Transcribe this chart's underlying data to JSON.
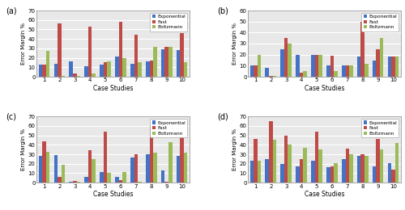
{
  "subplots": {
    "a": {
      "label": "(a)",
      "exponential": [
        13,
        14,
        16,
        11,
        13,
        21,
        14,
        16,
        29,
        28
      ],
      "fast": [
        13,
        56,
        3,
        53,
        15,
        58,
        44,
        17,
        32,
        46
      ],
      "boltzmann": [
        27,
        1,
        1,
        3,
        16,
        20,
        15,
        32,
        32,
        15
      ],
      "ylim": [
        0,
        70
      ],
      "yticks": [
        0,
        10,
        20,
        30,
        40,
        50,
        60,
        70
      ]
    },
    "b": {
      "label": "(b)",
      "exponential": [
        10,
        8,
        25,
        20,
        20,
        10,
        10,
        18,
        15,
        18
      ],
      "fast": [
        10,
        1,
        35,
        4,
        20,
        19,
        10,
        50,
        25,
        18
      ],
      "boltzmann": [
        20,
        1,
        30,
        5,
        20,
        5,
        10,
        12,
        35,
        18
      ],
      "ylim": [
        0,
        60
      ],
      "yticks": [
        0,
        10,
        20,
        30,
        40,
        50,
        60
      ]
    },
    "c": {
      "label": "(c)",
      "exponential": [
        28,
        29,
        1,
        6,
        11,
        6,
        27,
        30,
        13,
        28
      ],
      "fast": [
        44,
        6,
        2,
        34,
        54,
        3,
        30,
        60,
        1,
        60
      ],
      "boltzmann": [
        33,
        19,
        1,
        25,
        10,
        11,
        1,
        32,
        43,
        32
      ],
      "ylim": [
        0,
        70
      ],
      "yticks": [
        0,
        10,
        20,
        30,
        40,
        50,
        60,
        70
      ]
    },
    "d": {
      "label": "(d)",
      "exponential": [
        23,
        25,
        20,
        17,
        23,
        16,
        25,
        28,
        17,
        21
      ],
      "fast": [
        46,
        65,
        50,
        25,
        54,
        17,
        36,
        30,
        46,
        14
      ],
      "boltzmann": [
        23,
        45,
        40,
        37,
        35,
        21,
        30,
        28,
        35,
        42
      ],
      "ylim": [
        0,
        70
      ],
      "yticks": [
        0,
        10,
        20,
        30,
        40,
        50,
        60,
        70
      ]
    }
  },
  "colors": {
    "exponential": "#4472C4",
    "fast": "#BE4B48",
    "boltzmann": "#9BBB59"
  },
  "xlabel": "Case Studies",
  "ylabel": "Error Margin %",
  "cases": [
    1,
    2,
    3,
    4,
    5,
    6,
    7,
    8,
    9,
    10
  ]
}
